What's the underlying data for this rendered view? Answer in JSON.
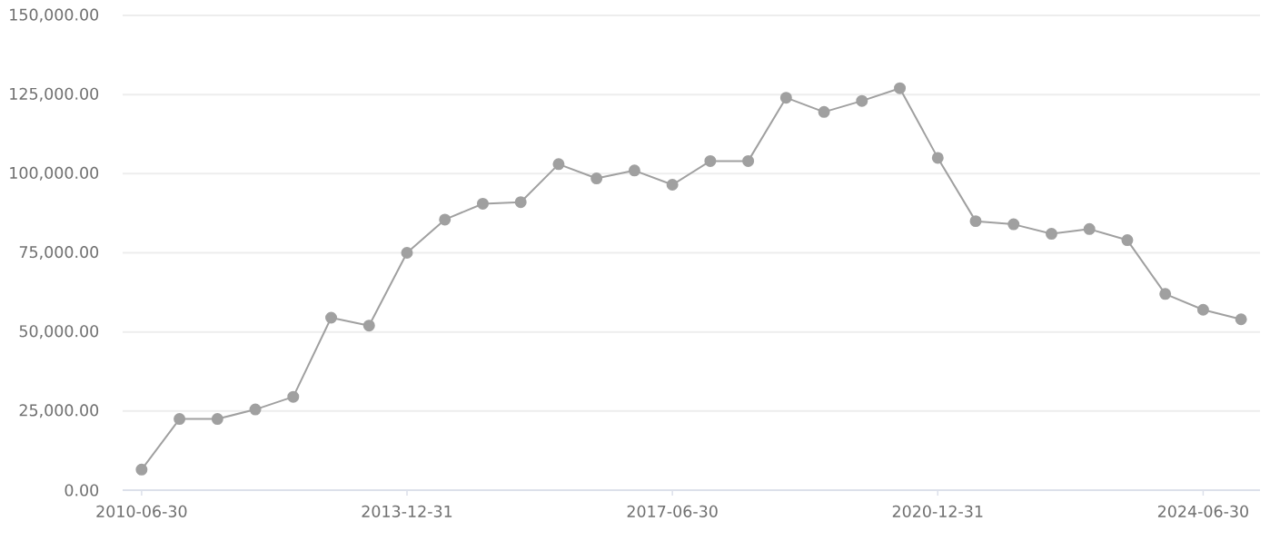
{
  "chart_data": {
    "type": "line",
    "categories": [
      "2010-06-30",
      null,
      null,
      null,
      null,
      null,
      null,
      "2013-12-31",
      null,
      null,
      null,
      null,
      null,
      null,
      "2017-06-30",
      null,
      null,
      null,
      null,
      null,
      null,
      "2020-12-31",
      null,
      null,
      null,
      null,
      null,
      null,
      "2024-06-30",
      null
    ],
    "values": [
      6500,
      22500,
      22500,
      25500,
      29500,
      54500,
      52000,
      75000,
      85500,
      90500,
      91000,
      103000,
      98500,
      101000,
      96500,
      104000,
      104000,
      124000,
      119500,
      123000,
      127000,
      105000,
      85000,
      84000,
      81000,
      82500,
      79000,
      62000,
      57000,
      54000
    ],
    "color": "#a0a0a0",
    "ylim": [
      0,
      150000
    ],
    "yticks": [
      {
        "value": 0,
        "label": "0.00"
      },
      {
        "value": 25000,
        "label": "25,000.00"
      },
      {
        "value": 50000,
        "label": "50,000.00"
      },
      {
        "value": 75000,
        "label": "75,000.00"
      },
      {
        "value": 100000,
        "label": "100,000.00"
      },
      {
        "value": 125000,
        "label": "125,000.00"
      },
      {
        "value": 150000,
        "label": "150,000.00"
      }
    ],
    "grid": "y",
    "marker": "circle"
  }
}
